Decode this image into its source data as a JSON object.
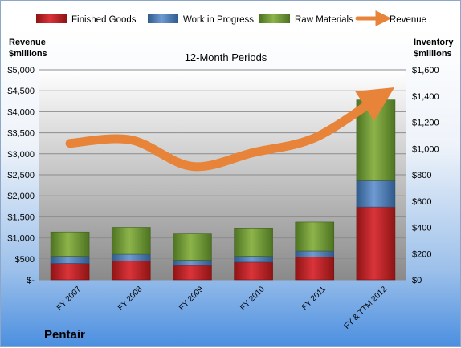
{
  "chart_data": {
    "type": "bar",
    "subtitle": "12-Month Periods",
    "company": "Pentair",
    "ylabel_left": [
      "Revenue",
      "$millions"
    ],
    "ylabel_right": [
      "Inventory",
      "$millions"
    ],
    "categories": [
      "FY 2007",
      "FY 2008",
      "FY 2009",
      "FY 2010",
      "FY 2011",
      "FY & TTM 2012"
    ],
    "left_ticks": [
      "$-",
      "$500",
      "$1,000",
      "$1,500",
      "$2,000",
      "$2,500",
      "$3,000",
      "$3,500",
      "$4,000",
      "$4,500",
      "$5,000"
    ],
    "right_ticks": [
      "$0",
      "$200",
      "$400",
      "$600",
      "$800",
      "$1,000",
      "$1,200",
      "$1,400",
      "$1,600"
    ],
    "left_ylim": [
      0,
      5000
    ],
    "right_ylim": [
      0,
      1600
    ],
    "stacked": true,
    "series": [
      {
        "name": "Finished Goods",
        "axis": "right",
        "color": "#c0282d",
        "values": [
          125,
          145,
          110,
          135,
          175,
          555
        ]
      },
      {
        "name": "Work in Progress",
        "axis": "right",
        "color": "#4f81bd",
        "values": [
          55,
          50,
          40,
          45,
          45,
          200
        ]
      },
      {
        "name": "Raw Materials",
        "axis": "right",
        "color": "#6e9a2f",
        "values": [
          185,
          205,
          200,
          215,
          220,
          615
        ]
      },
      {
        "name": "Revenue",
        "axis": "left",
        "type": "line",
        "color": "#e8843a",
        "values": [
          3250,
          3330,
          2700,
          3030,
          3380,
          4300
        ]
      }
    ],
    "grid": true,
    "legend": "top"
  }
}
